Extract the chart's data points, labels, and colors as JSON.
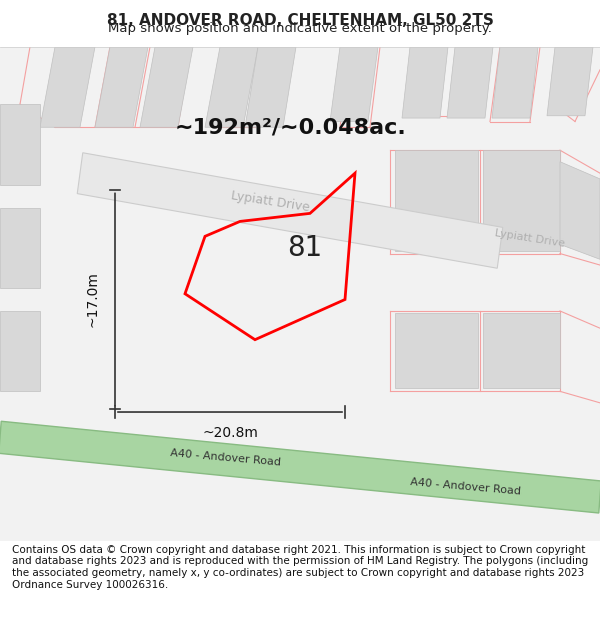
{
  "title_line1": "81, ANDOVER ROAD, CHELTENHAM, GL50 2TS",
  "title_line2": "Map shows position and indicative extent of the property.",
  "area_label": "~192m²/~0.048ac.",
  "label_81": "81",
  "dim_height": "~17.0m",
  "dim_width": "~20.8m",
  "road_label1": "A40 - Andover Road",
  "road_label2": "A40 - Andover Road",
  "lypiatt_drive1": "Lypiatt Drive",
  "lypiatt_drive2": "Lypiatt Drive",
  "footer_text": "Contains OS data © Crown copyright and database right 2021. This information is subject to Crown copyright and database rights 2023 and is reproduced with the permission of HM Land Registry. The polygons (including the associated geometry, namely x, y co-ordinates) are subject to Crown copyright and database rights 2023 Ordnance Survey 100026316.",
  "bg_color": "#f5f5f5",
  "map_bg": "#f0f0f0",
  "road_green_color": "#a8d5a2",
  "road_green_edge": "#88bb82",
  "road_outline_color": "#cccccc",
  "building_fill": "#e8e8e8",
  "building_outline": "#cccccc",
  "pink_line_color": "#f4a0a0",
  "red_polygon_color": "#ff0000",
  "dim_line_color": "#333333",
  "text_color": "#222222",
  "road_text_color": "#555555",
  "lypiatt_text_color": "#aaaaaa",
  "title_fontsize": 11,
  "subtitle_fontsize": 9.5,
  "area_fontsize": 16,
  "label_fontsize": 20,
  "dim_fontsize": 10,
  "road_fontsize": 8,
  "footer_fontsize": 7.5
}
